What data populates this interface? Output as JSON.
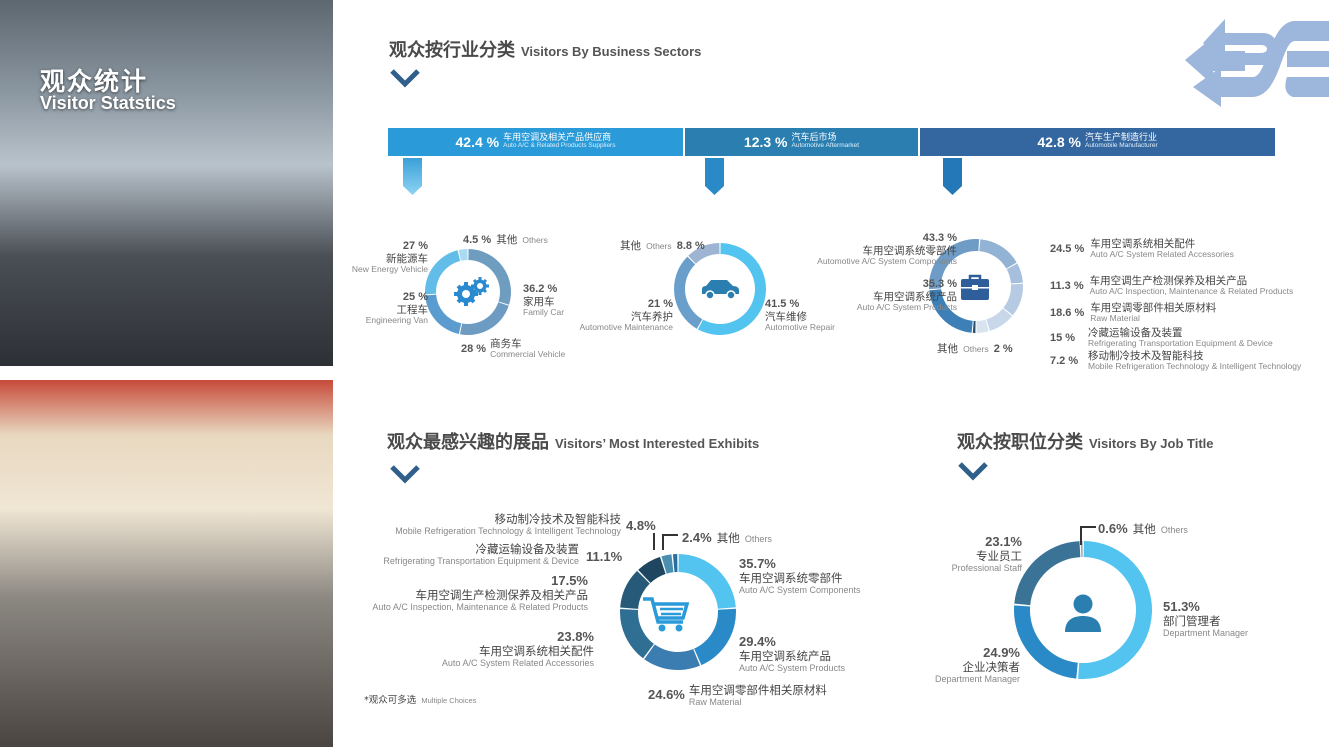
{
  "overlay": {
    "title": "观众统计",
    "subtitle": "Visitor Statstics"
  },
  "sections": {
    "business": {
      "cn": "观众按行业分类",
      "en": "Visitors By Business Sectors"
    },
    "exhibits": {
      "cn": "观众最感兴趣的展品",
      "en": "Visitors’ Most Interested Exhibits"
    },
    "job": {
      "cn": "观众按职位分类",
      "en": "Visitors By Job Title"
    }
  },
  "sector_bar": [
    {
      "pct": "42.4 %",
      "cn": "车用空调及相关产品供应商",
      "en": "Auto A/C & Related Products Suppliers",
      "color": "#2a9ad8"
    },
    {
      "pct": "12.3 %",
      "cn": "汽车后市场",
      "en": "Automotive Aftermarket",
      "color": "#2a7fb0"
    },
    {
      "pct": "42.8 %",
      "cn": "汽车生产制造行业",
      "en": "Automobile Manufacturer",
      "color": "#3467a0"
    }
  ],
  "footnote": {
    "cn": "*观众可多选",
    "en": "Multiple Choices"
  },
  "chart_data": [
    {
      "type": "pie",
      "donut": true,
      "center_icon": "gears-icon",
      "slices": [
        {
          "pct": "36.2 %",
          "value": 36.2,
          "cn": "家用车",
          "en": "Family Car",
          "color": "#6f9dc0"
        },
        {
          "pct": "28 %",
          "value": 28,
          "cn": "商务车",
          "en": "Commercial Vehicle",
          "color": "#6e9bc2"
        },
        {
          "pct": "25 %",
          "value": 25,
          "cn": "工程车",
          "en": "Engineering Van",
          "color": "#5a9ccf"
        },
        {
          "pct": "27 %",
          "value": 27,
          "cn": "新能源车",
          "en": "New Energy Vehicle",
          "color": "#62bde8"
        },
        {
          "pct": "4.5 %",
          "value": 4.5,
          "cn": "其他",
          "en": "Others",
          "color": "#a9dcf3"
        }
      ]
    },
    {
      "type": "pie",
      "donut": true,
      "center_icon": "car-icon",
      "slices": [
        {
          "pct": "41.5 %",
          "value": 41.5,
          "cn": "汽车维修",
          "en": "Automotive Repair",
          "color": "#52c4ef"
        },
        {
          "pct": "21 %",
          "value": 21,
          "cn": "汽车养护",
          "en": "Automotive Maintenance",
          "color": "#6a9fcc"
        },
        {
          "pct": "8.8 %",
          "value": 8.8,
          "cn": "其他",
          "en": "Others",
          "color": "#9db5d3"
        }
      ]
    },
    {
      "type": "pie",
      "donut": true,
      "center_icon": "briefcase-icon",
      "slices": [
        {
          "pct": "2 %",
          "value": 2,
          "cn": "其他",
          "en": "Others",
          "color": "#2d4f70"
        },
        {
          "pct": "35.3 %",
          "value": 35.3,
          "cn": "车用空调系统产品",
          "en": "Auto A/C System Products",
          "color": "#3d80b8"
        },
        {
          "pct": "43.3 %",
          "value": 43.3,
          "cn": "车用空调系统零部件",
          "en": "Automotive A/C System Components",
          "color": "#6e9cc6"
        },
        {
          "pct": "24.5 %",
          "value": 24.5,
          "cn": "车用空调系统相关配件",
          "en": "Auto A/C System Related Accessories",
          "color": "#93b3d4"
        },
        {
          "pct": "11.3 %",
          "value": 11.3,
          "cn": "车用空调生产检测保养及相关产品",
          "en": "Auto A/C Inspection, Maintenance & Related Products",
          "color": "#a5bfdc"
        },
        {
          "pct": "18.6 %",
          "value": 18.6,
          "cn": "车用空调零部件相关原材料",
          "en": "Raw Material",
          "color": "#b6cbe3"
        },
        {
          "pct": "15 %",
          "value": 15,
          "cn": "冷藏运输设备及装置",
          "en": "Refrigerating Transportation Equipment & Device",
          "color": "#c8d7ea"
        },
        {
          "pct": "7.2 %",
          "value": 7.2,
          "cn": "移动制冷技术及智能科技",
          "en": "Mobile Refrigeration Technology & Intelligent Technology",
          "color": "#d8e3f0"
        }
      ]
    },
    {
      "type": "pie",
      "donut": true,
      "center_icon": "shopping-cart-icon",
      "slices": [
        {
          "pct": "35.7%",
          "value": 35.7,
          "cn": "车用空调系统零部件",
          "en": "Auto A/C System Components",
          "color": "#52c4ef"
        },
        {
          "pct": "29.4%",
          "value": 29.4,
          "cn": "车用空调系统产品",
          "en": "Auto A/C System Products",
          "color": "#2a8ac8"
        },
        {
          "pct": "24.6%",
          "value": 24.6,
          "cn": "车用空调零部件相关原材料",
          "en": "Raw Material",
          "color": "#3b7db0"
        },
        {
          "pct": "23.8%",
          "value": 23.8,
          "cn": "车用空调系统相关配件",
          "en": "Auto A/C System Related Accessories",
          "color": "#306f94"
        },
        {
          "pct": "17.5%",
          "value": 17.5,
          "cn": "车用空调生产检测保养及相关产品",
          "en": "Auto A/C Inspection, Maintenance & Related Products",
          "color": "#275a78"
        },
        {
          "pct": "11.1%",
          "value": 11.1,
          "cn": "冷藏运输设备及装置",
          "en": "Refrigerating Transportation Equipment & Device",
          "color": "#1f4660"
        },
        {
          "pct": "4.8%",
          "value": 4.8,
          "cn": "移动制冷技术及智能科技",
          "en": "Mobile Refrigeration Technology & Intelligent Technology",
          "color": "#4b8fb0"
        },
        {
          "pct": "2.4%",
          "value": 2.4,
          "cn": "其他",
          "en": "Others",
          "color": "#2a6ea0"
        }
      ]
    },
    {
      "type": "pie",
      "donut": true,
      "center_icon": "person-icon",
      "slices": [
        {
          "pct": "51.3%",
          "value": 51.3,
          "cn": "部门管理者",
          "en": "Department Manager",
          "color": "#52c4ef"
        },
        {
          "pct": "24.9%",
          "value": 24.9,
          "cn": "企业决策者",
          "en": "Department Manager",
          "color": "#2a8ac8"
        },
        {
          "pct": "23.1%",
          "value": 23.1,
          "cn": "专业员工",
          "en": "Professional Staff",
          "color": "#3a7396"
        },
        {
          "pct": "0.6%",
          "value": 0.6,
          "cn": "其他",
          "en": "Others",
          "color": "#9aa5ae"
        }
      ]
    }
  ],
  "colors": {
    "accent": "#2a9ad8",
    "chevron": "#2f5f8a",
    "logo": "#9db6dc"
  }
}
